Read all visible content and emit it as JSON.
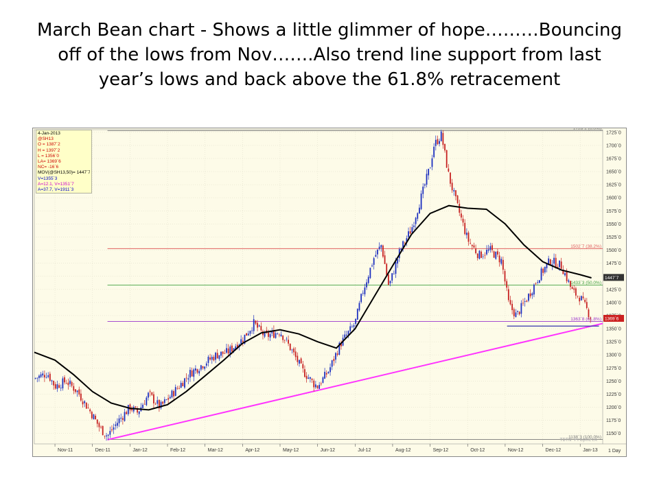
{
  "slide": {
    "title_lines": [
      "March Bean chart - Shows a little glimmer of hope………Bouncing",
      "off of the lows from Nov…….Also trend line support from last",
      "year’s lows and back above the 61.8% retracement"
    ]
  },
  "legend": {
    "items": [
      {
        "text": "4-Jan-2013",
        "color": "#000000"
      },
      {
        "text": "@SH13",
        "color": "#cc0000"
      },
      {
        "text": "O = 1387`2",
        "color": "#cc0000"
      },
      {
        "text": "H = 1397`2",
        "color": "#cc0000"
      },
      {
        "text": "L = 1356`0",
        "color": "#cc0000"
      },
      {
        "text": "LA= 1369`6",
        "color": "#cc0000"
      },
      {
        "text": "NC= -16`6",
        "color": "#cc0000"
      },
      {
        "text": "MOV(@SH13,50)= 1447`7",
        "color": "#000000"
      },
      {
        "text": "V=1355`3",
        "color": "#0000cc"
      },
      {
        "text": "A=12.1, V=1351`7",
        "color": "#cc00cc"
      },
      {
        "text": "A=37.7, V=1911`3",
        "color": "#0000cc"
      }
    ]
  },
  "footer": {
    "watermark": "TDTN ProphetX",
    "interval": "1 Day"
  },
  "chart_data": {
    "type": "candlestick",
    "title": "",
    "symbol": "@SH13",
    "ylim": [
      1130,
      1730
    ],
    "y_ticks": [
      "1150`0",
      "1175`0",
      "1200`0",
      "1225`0",
      "1250`0",
      "1275`0",
      "1300`0",
      "1325`0",
      "1350`0",
      "1375`0",
      "1400`0",
      "1425`0",
      "1450`0",
      "1475`0",
      "1500`0",
      "1525`0",
      "1550`0",
      "1575`0",
      "1600`0",
      "1625`0",
      "1650`0",
      "1675`0",
      "1700`0",
      "1725`0"
    ],
    "y_tick_values": [
      1150,
      1175,
      1200,
      1225,
      1250,
      1275,
      1300,
      1325,
      1350,
      1375,
      1400,
      1425,
      1450,
      1475,
      1500,
      1525,
      1550,
      1575,
      1600,
      1625,
      1650,
      1675,
      1700,
      1725
    ],
    "x_months": [
      "Nov-11",
      "Dec-11",
      "Jan-12",
      "Feb-12",
      "Mar-12",
      "Apr-12",
      "May-12",
      "Jun-12",
      "Jul-12",
      "Aug-12",
      "Sep-12",
      "Oct-12",
      "Nov-12",
      "Dec-12",
      "Jan-13"
    ],
    "x_month_index": [
      0,
      1,
      2,
      3,
      4,
      5,
      6,
      7,
      8,
      9,
      10,
      11,
      12,
      13,
      14
    ],
    "x_range": [
      -0.55,
      14.6
    ],
    "retracement_levels": [
      {
        "label": "1728`2 (0.0%)",
        "value": 1728.25,
        "color": "#777777"
      },
      {
        "label": "1502`7 (38.2%)",
        "value": 1502.875,
        "color": "#e06060"
      },
      {
        "label": "1433`3 (50.0%)",
        "value": 1433.375,
        "color": "#40a040"
      },
      {
        "label": "1363`8 (61.8%)",
        "value": 1363.875,
        "color": "#9933cc"
      },
      {
        "label": "1138`3 (100.0%)",
        "value": 1138.375,
        "color": "#777777"
      }
    ],
    "price_tags": [
      {
        "label": "1447`7",
        "value": 1447.875,
        "bg": "#333333",
        "fg": "#ffffff"
      },
      {
        "label": "1369`6",
        "value": 1369.75,
        "bg": "#cc2020",
        "fg": "#ffffff"
      }
    ],
    "trend_line": {
      "color": "#ff33ff",
      "points": [
        [
          1.4,
          1138
        ],
        [
          14.6,
          1360
        ]
      ]
    },
    "support_line": {
      "color": "#3333aa",
      "points": [
        [
          12.05,
          1355
        ],
        [
          14.5,
          1355
        ]
      ]
    },
    "moving_average": {
      "name": "MOV(@SH13,50)",
      "color": "#000000",
      "points": [
        [
          -0.55,
          1305
        ],
        [
          0,
          1290
        ],
        [
          0.5,
          1262
        ],
        [
          1,
          1230
        ],
        [
          1.5,
          1208
        ],
        [
          2,
          1198
        ],
        [
          2.5,
          1195
        ],
        [
          3,
          1205
        ],
        [
          3.5,
          1230
        ],
        [
          4,
          1260
        ],
        [
          4.5,
          1290
        ],
        [
          5,
          1322
        ],
        [
          5.5,
          1342
        ],
        [
          6,
          1348
        ],
        [
          6.5,
          1340
        ],
        [
          7,
          1325
        ],
        [
          7.5,
          1313
        ],
        [
          8,
          1350
        ],
        [
          8.5,
          1410
        ],
        [
          9,
          1470
        ],
        [
          9.5,
          1530
        ],
        [
          10,
          1570
        ],
        [
          10.5,
          1585
        ],
        [
          11,
          1580
        ],
        [
          11.5,
          1578
        ],
        [
          12,
          1550
        ],
        [
          12.5,
          1510
        ],
        [
          13,
          1478
        ],
        [
          13.5,
          1462
        ],
        [
          14,
          1453
        ],
        [
          14.3,
          1447
        ]
      ]
    },
    "price_path": [
      [
        -0.55,
        1255
      ],
      [
        -0.2,
        1265
      ],
      [
        0,
        1240
      ],
      [
        0.3,
        1250
      ],
      [
        0.6,
        1230
      ],
      [
        1,
        1185
      ],
      [
        1.2,
        1160
      ],
      [
        1.4,
        1145
      ],
      [
        1.7,
        1175
      ],
      [
        2,
        1200
      ],
      [
        2.2,
        1190
      ],
      [
        2.5,
        1225
      ],
      [
        2.8,
        1200
      ],
      [
        3,
        1215
      ],
      [
        3.3,
        1240
      ],
      [
        3.6,
        1265
      ],
      [
        4,
        1285
      ],
      [
        4.3,
        1300
      ],
      [
        4.6,
        1305
      ],
      [
        5,
        1330
      ],
      [
        5.3,
        1360
      ],
      [
        5.6,
        1335
      ],
      [
        6,
        1345
      ],
      [
        6.3,
        1310
      ],
      [
        6.6,
        1270
      ],
      [
        6.9,
        1245
      ],
      [
        7,
        1240
      ],
      [
        7.3,
        1270
      ],
      [
        7.6,
        1320
      ],
      [
        8,
        1360
      ],
      [
        8.2,
        1420
      ],
      [
        8.5,
        1485
      ],
      [
        8.7,
        1510
      ],
      [
        8.9,
        1430
      ],
      [
        9.2,
        1500
      ],
      [
        9.5,
        1540
      ],
      [
        9.8,
        1610
      ],
      [
        10,
        1660
      ],
      [
        10.1,
        1700
      ],
      [
        10.3,
        1720
      ],
      [
        10.5,
        1640
      ],
      [
        10.7,
        1590
      ],
      [
        11,
        1520
      ],
      [
        11.3,
        1490
      ],
      [
        11.6,
        1500
      ],
      [
        11.9,
        1480
      ],
      [
        12.1,
        1395
      ],
      [
        12.3,
        1375
      ],
      [
        12.6,
        1410
      ],
      [
        12.9,
        1450
      ],
      [
        13.2,
        1480
      ],
      [
        13.5,
        1470
      ],
      [
        13.8,
        1420
      ],
      [
        14,
        1410
      ],
      [
        14.3,
        1370
      ]
    ]
  }
}
